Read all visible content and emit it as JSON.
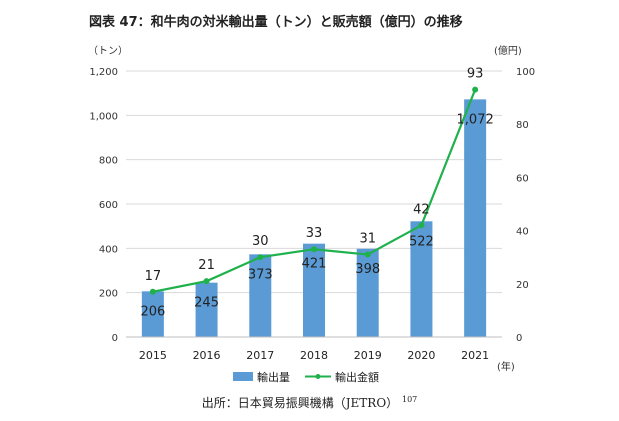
{
  "title": "図表 47：和牛肉の対米輸出量（トン）と販売額（億円）の推移",
  "source": {
    "text": "出所：日本貿易振興機構（JETRO）",
    "footnote": "107"
  },
  "chart_data": {
    "type": "bar+line",
    "categories": [
      "2015",
      "2016",
      "2017",
      "2018",
      "2019",
      "2020",
      "2021"
    ],
    "series": [
      {
        "name": "輸出量",
        "type": "bar",
        "axis": "left",
        "values": [
          206,
          245,
          373,
          421,
          398,
          522,
          1072
        ],
        "labels": [
          "206",
          "245",
          "373",
          "421",
          "398",
          "522",
          "1,072"
        ],
        "color": "#5B9BD5"
      },
      {
        "name": "輸出金額",
        "type": "line",
        "axis": "right",
        "values": [
          17,
          21,
          30,
          33,
          31,
          42,
          93
        ],
        "labels": [
          "17",
          "21",
          "30",
          "33",
          "31",
          "42",
          "93"
        ],
        "color": "#1FB14C"
      }
    ],
    "y_left": {
      "unit": "（トン）",
      "ylim": [
        0,
        1200
      ],
      "ticks": [
        "0",
        "200",
        "400",
        "600",
        "800",
        "1,000",
        "1,200"
      ]
    },
    "y_right": {
      "unit": "(億円)",
      "ylim": [
        0,
        100
      ],
      "ticks": [
        "0",
        "20",
        "40",
        "60",
        "80",
        "100"
      ]
    },
    "x_unit": "(年)",
    "gridlines": true,
    "legend_position": "bottom"
  }
}
